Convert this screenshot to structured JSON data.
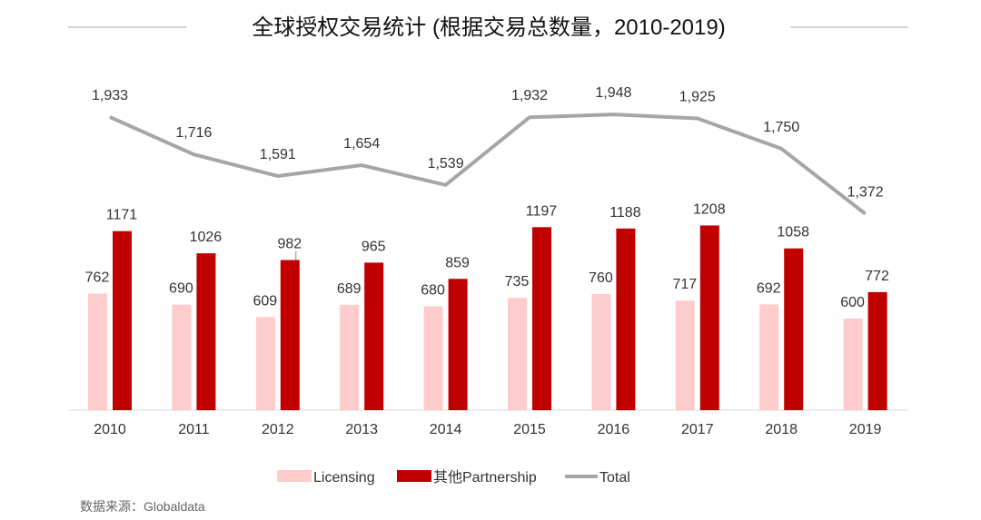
{
  "chart_data": {
    "type": "bar",
    "title": "全球授权交易统计 (根据交易总数量，2010-2019)",
    "categories": [
      "2010",
      "2011",
      "2012",
      "2013",
      "2014",
      "2015",
      "2016",
      "2017",
      "2018",
      "2019"
    ],
    "series": [
      {
        "name": "Licensing",
        "type": "bar",
        "color": "#FFCCCC",
        "values": [
          762,
          690,
          609,
          689,
          680,
          735,
          760,
          717,
          692,
          600
        ],
        "labels": [
          "762",
          "690",
          "609",
          "689",
          "680",
          "735",
          "760",
          "717",
          "692",
          "600"
        ]
      },
      {
        "name": "其他Partnership",
        "type": "bar",
        "color": "#C00000",
        "values": [
          1171,
          1026,
          982,
          965,
          859,
          1197,
          1188,
          1208,
          1058,
          772
        ],
        "labels": [
          "1171",
          "1026",
          "982",
          "965",
          "859",
          "1197",
          "1188",
          "1208",
          "1058",
          "772"
        ]
      },
      {
        "name": "Total",
        "type": "line",
        "color": "#A6A6A6",
        "values": [
          1933,
          1716,
          1591,
          1654,
          1539,
          1932,
          1948,
          1925,
          1750,
          1372
        ],
        "labels": [
          "1,933",
          "1,716",
          "1,591",
          "1,654",
          "1,539",
          "1,932",
          "1,948",
          "1,925",
          "1,750",
          "1,372"
        ]
      }
    ],
    "legend_position": "bottom",
    "grid": false
  },
  "source": "数据来源：Globaldata"
}
